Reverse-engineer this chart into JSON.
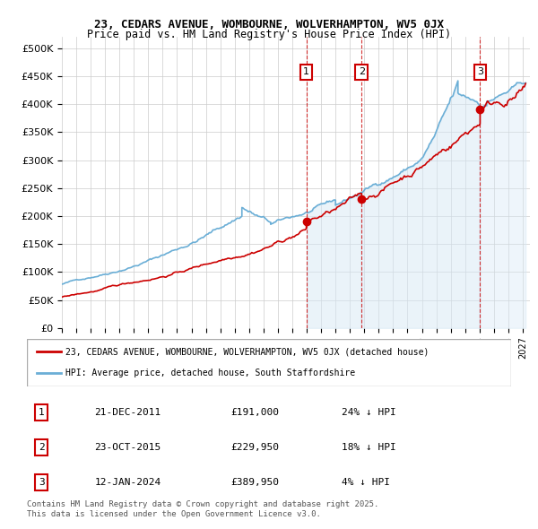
{
  "title1": "23, CEDARS AVENUE, WOMBOURNE, WOLVERHAMPTON, WV5 0JX",
  "title2": "Price paid vs. HM Land Registry's House Price Index (HPI)",
  "ylabel": "",
  "xlim_start": 1995.0,
  "xlim_end": 2027.5,
  "ylim_min": 0,
  "ylim_max": 520000,
  "yticks": [
    0,
    50000,
    100000,
    150000,
    200000,
    250000,
    300000,
    350000,
    400000,
    450000,
    500000
  ],
  "ytick_labels": [
    "£0",
    "£50K",
    "£100K",
    "£150K",
    "£200K",
    "£250K",
    "£300K",
    "£350K",
    "£400K",
    "£450K",
    "£500K"
  ],
  "xtick_years": [
    1995,
    1996,
    1997,
    1998,
    1999,
    2000,
    2001,
    2002,
    2003,
    2004,
    2005,
    2006,
    2007,
    2008,
    2009,
    2010,
    2011,
    2012,
    2013,
    2014,
    2015,
    2016,
    2017,
    2018,
    2019,
    2020,
    2021,
    2022,
    2023,
    2024,
    2025,
    2026,
    2027
  ],
  "sale_dates_num": [
    2011.97,
    2015.81,
    2024.04
  ],
  "sale_prices": [
    191000,
    229950,
    389950
  ],
  "sale_labels": [
    "1",
    "2",
    "3"
  ],
  "hpi_color": "#6aaed6",
  "price_color": "#cc0000",
  "sale_marker_color": "#cc0000",
  "vline_color": "#cc0000",
  "shade_color": "#d6e8f5",
  "legend_entries": [
    "23, CEDARS AVENUE, WOMBOURNE, WOLVERHAMPTON, WV5 0JX (detached house)",
    "HPI: Average price, detached house, South Staffordshire"
  ],
  "table_rows": [
    {
      "num": "1",
      "date": "21-DEC-2011",
      "price": "£191,000",
      "note": "24% ↓ HPI"
    },
    {
      "num": "2",
      "date": "23-OCT-2015",
      "price": "£229,950",
      "note": "18% ↓ HPI"
    },
    {
      "num": "3",
      "date": "12-JAN-2024",
      "price": "£389,950",
      "note": "4% ↓ HPI"
    }
  ],
  "footnote1": "Contains HM Land Registry data © Crown copyright and database right 2025.",
  "footnote2": "This data is licensed under the Open Government Licence v3.0.",
  "background_color": "#ffffff"
}
